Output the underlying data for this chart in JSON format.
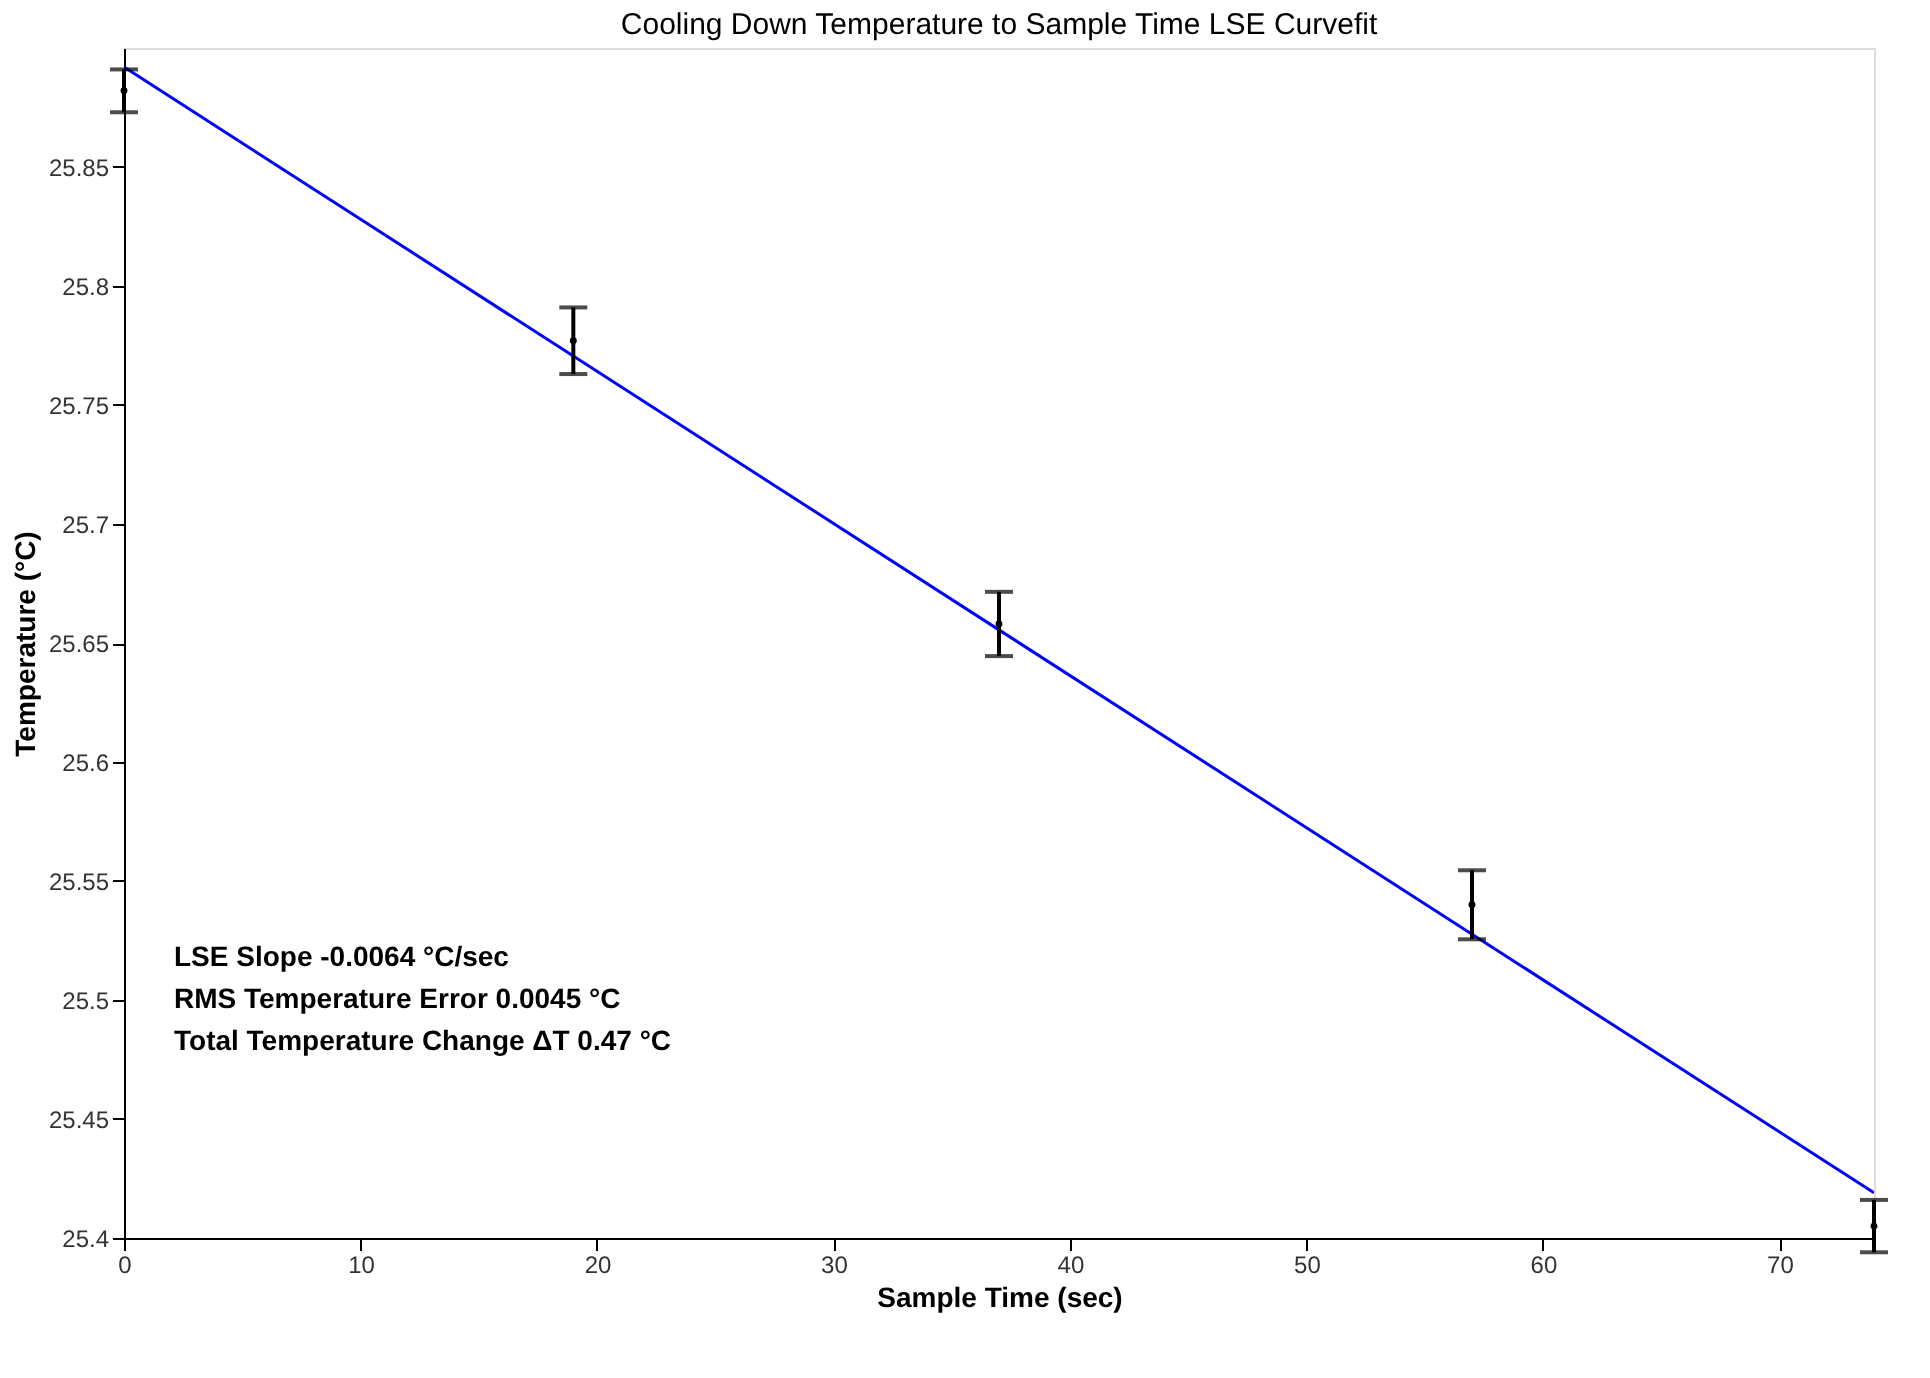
{
  "chart_data": {
    "type": "scatter",
    "title": "Cooling Down Temperature to Sample Time LSE Curvefit",
    "xlabel": "Sample Time (sec)",
    "ylabel": "Temperature (°C)",
    "xlim": [
      0,
      74
    ],
    "ylim": [
      25.4,
      25.9
    ],
    "xticks": [
      0,
      10,
      20,
      30,
      40,
      50,
      60,
      70
    ],
    "yticks": [
      25.4,
      25.45,
      25.5,
      25.55,
      25.6,
      25.65,
      25.7,
      25.75,
      25.8,
      25.85
    ],
    "grid": false,
    "series": [
      {
        "type": "line",
        "color": "#0000ff",
        "x": [
          0,
          74
        ],
        "values": [
          25.892,
          25.419
        ],
        "line_style": "solid"
      },
      {
        "color": "#000000",
        "x": [
          0,
          19,
          37,
          57,
          74
        ],
        "values": [
          25.882,
          25.777,
          25.658,
          25.54,
          25.405
        ],
        "errors": [
          0.009,
          0.014,
          0.0135,
          0.0145,
          0.011
        ],
        "marker": "circle"
      }
    ],
    "annotations": [
      "LSE Slope -0.0064 °C/sec",
      "RMS Temperature Error 0.0045 °C",
      "Total Temperature Change ΔT 0.47 °C"
    ]
  }
}
